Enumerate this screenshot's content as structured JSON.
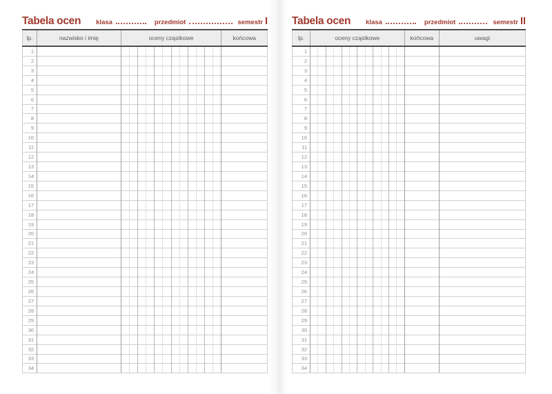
{
  "colors": {
    "accent": "#a03a2e",
    "header_band_border": "#4d4d4d",
    "header_background": "#ededed",
    "grid_line_light": "#e0e0e0",
    "grid_line_dark": "#b8b8b8"
  },
  "pages": [
    {
      "side": "left",
      "title": "Tabela ocen",
      "class_label": "klasa",
      "subject_label": "przedmiot",
      "semester_label": "semestr",
      "semester_numeral": "I",
      "columns": [
        {
          "type": "lp",
          "label": "lp."
        },
        {
          "type": "name",
          "label": "nazwisko i imię"
        },
        {
          "type": "grades",
          "label": "oceny cząstkowe",
          "subcolumns": 12
        },
        {
          "type": "final",
          "label": "końcowa"
        }
      ],
      "row_numbers": [
        1,
        2,
        3,
        4,
        5,
        6,
        7,
        8,
        9,
        10,
        11,
        12,
        13,
        14,
        15,
        16,
        17,
        18,
        19,
        20,
        21,
        22,
        23,
        24,
        25,
        26,
        27,
        28,
        29,
        30,
        31,
        32,
        33,
        34
      ]
    },
    {
      "side": "right",
      "title": "Tabela ocen",
      "class_label": "klasa",
      "subject_label": "przedmiot",
      "semester_label": "semestr",
      "semester_numeral": "II",
      "columns": [
        {
          "type": "lp",
          "label": "lp."
        },
        {
          "type": "grades",
          "label": "oceny cząstkowe",
          "subcolumns": 12
        },
        {
          "type": "final",
          "label": "końcowa"
        },
        {
          "type": "notes",
          "label": "uwagi"
        }
      ],
      "row_numbers": [
        1,
        2,
        3,
        4,
        5,
        6,
        7,
        8,
        9,
        10,
        11,
        12,
        13,
        14,
        15,
        16,
        17,
        18,
        19,
        20,
        21,
        22,
        23,
        24,
        25,
        26,
        27,
        28,
        29,
        30,
        31,
        32,
        33,
        34
      ]
    }
  ]
}
